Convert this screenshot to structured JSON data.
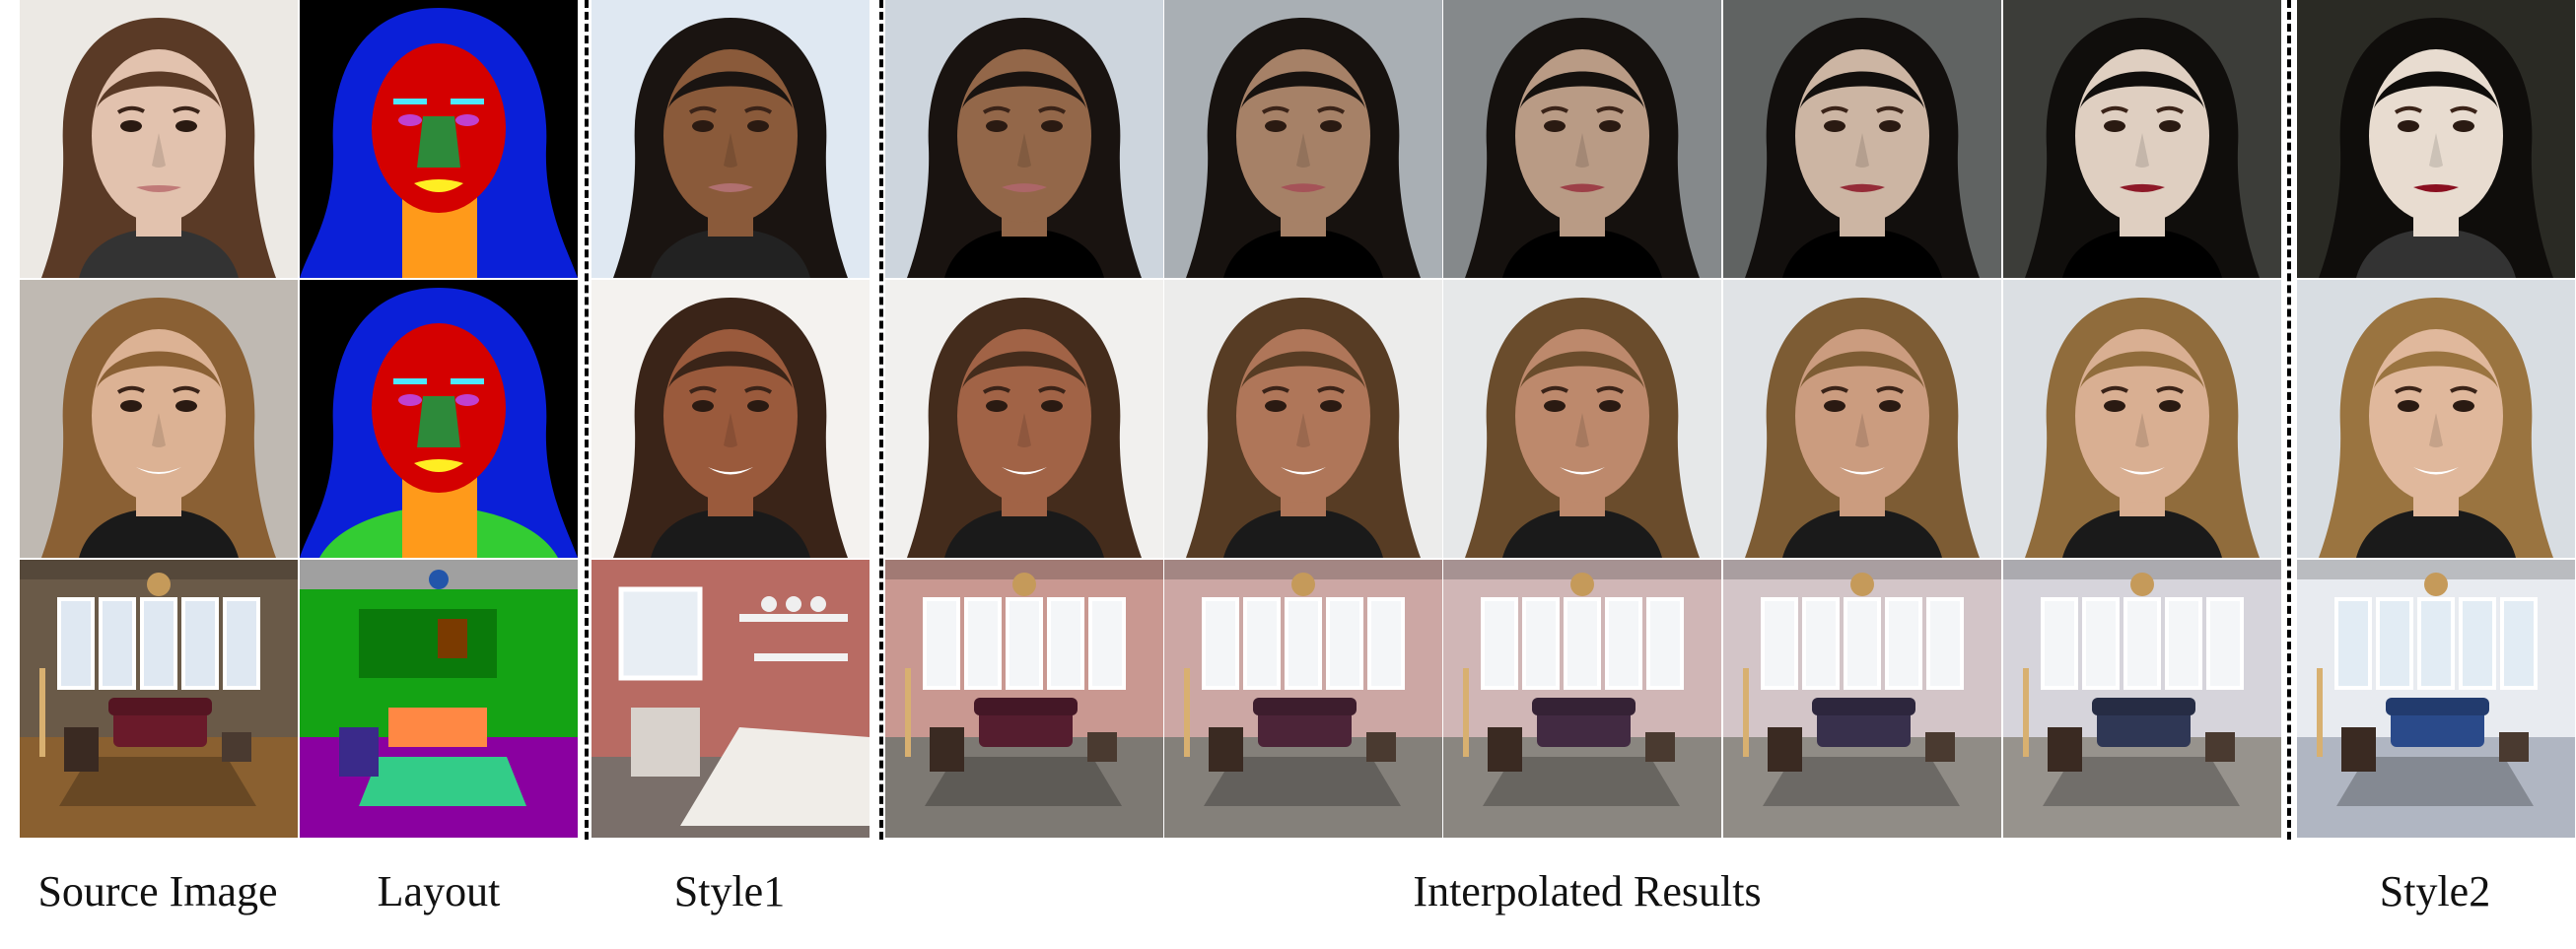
{
  "figure": {
    "columns": [
      {
        "id": "source",
        "label": "Source Image"
      },
      {
        "id": "layout",
        "label": "Layout"
      },
      {
        "id": "style1",
        "label": "Style1"
      },
      {
        "id": "interp",
        "label": "Interpolated Results"
      },
      {
        "id": "style2",
        "label": "Style2"
      }
    ],
    "rows": [
      {
        "id": "face-woman",
        "kind": "face"
      },
      {
        "id": "face-child",
        "kind": "face"
      },
      {
        "id": "bedroom",
        "kind": "room"
      }
    ],
    "interpolation_steps": 5,
    "colors": {
      "background": "#ffffff",
      "separator": "#000000",
      "layout_hair": "#0a1fd8",
      "layout_face": "#d40000",
      "layout_nose": "#2d8a3a",
      "layout_neck": "#ff9a1a",
      "layout_bg": "#000000"
    }
  }
}
